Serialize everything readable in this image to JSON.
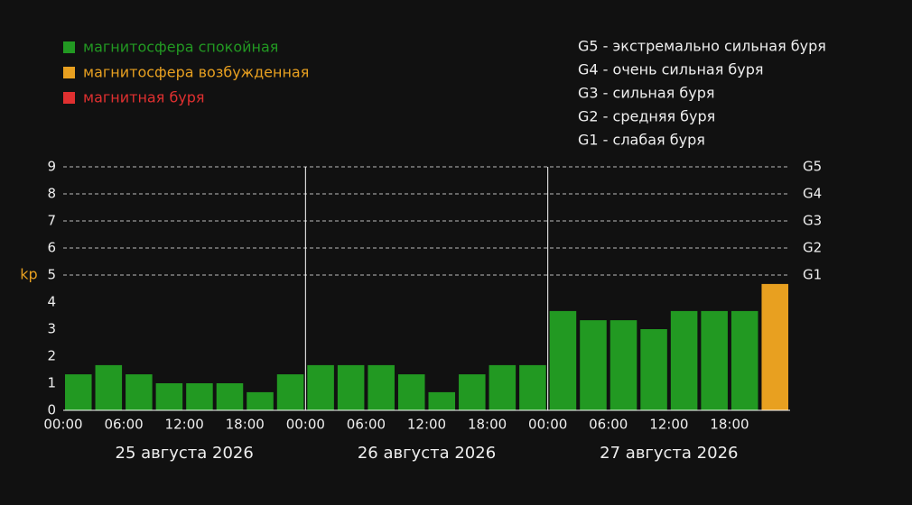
{
  "chart_data": {
    "type": "bar",
    "y_label": "kp",
    "legend": [
      {
        "name": "магнитосфера спокойная",
        "color": "#229922"
      },
      {
        "name": "магнитосфера возбужденная",
        "color": "#e8a020"
      },
      {
        "name": "магнитная буря",
        "color": "#e03030"
      }
    ],
    "storm_levels": [
      "G5 - экстремально сильная буря",
      "G4 - очень сильная буря",
      "G3 - сильная буря",
      "G2 - средняя буря",
      "G1 - слабая буря"
    ],
    "x": [
      0,
      3,
      6,
      9,
      12,
      15,
      18,
      21,
      24,
      27,
      30,
      33,
      36,
      39,
      42,
      45,
      48,
      51,
      54,
      57,
      60,
      63,
      66,
      69
    ],
    "bar_width": 3,
    "values": [
      1.33,
      1.67,
      1.33,
      1,
      1,
      1,
      0.67,
      1.33,
      1.67,
      1.67,
      1.67,
      1.33,
      0.67,
      1.33,
      1.67,
      1.67,
      3.67,
      3.33,
      3.33,
      3,
      3.67,
      3.67,
      3.67,
      4.67
    ],
    "colors": [
      "#229922",
      "#229922",
      "#229922",
      "#229922",
      "#229922",
      "#229922",
      "#229922",
      "#229922",
      "#229922",
      "#229922",
      "#229922",
      "#229922",
      "#229922",
      "#229922",
      "#229922",
      "#229922",
      "#229922",
      "#229922",
      "#229922",
      "#229922",
      "#229922",
      "#229922",
      "#229922",
      "#e8a020"
    ],
    "xlim": [
      0,
      72
    ],
    "xticks": [
      {
        "value": 0,
        "label": "00:00"
      },
      {
        "value": 6,
        "label": "06:00"
      },
      {
        "value": 12,
        "label": "12:00"
      },
      {
        "value": 18,
        "label": "18:00"
      },
      {
        "value": 24,
        "label": "00:00"
      },
      {
        "value": 30,
        "label": "06:00"
      },
      {
        "value": 36,
        "label": "12:00"
      },
      {
        "value": 42,
        "label": "18:00"
      },
      {
        "value": 48,
        "label": "00:00"
      },
      {
        "value": 54,
        "label": "06:00"
      },
      {
        "value": 60,
        "label": "12:00"
      },
      {
        "value": 66,
        "label": "18:00"
      }
    ],
    "days": [
      "25 августа 2026",
      "26 августа 2026",
      "27 августа 2026"
    ],
    "ylim": [
      0,
      9
    ],
    "yticks": [
      0,
      1,
      2,
      3,
      4,
      5,
      6,
      7,
      8,
      9
    ],
    "y2lim": [
      0,
      9
    ],
    "y2ticks": [
      {
        "value": 9,
        "label": "G5"
      },
      {
        "value": 8,
        "label": "G4"
      },
      {
        "value": 7,
        "label": "G3"
      },
      {
        "value": 6,
        "label": "G2"
      },
      {
        "value": 5,
        "label": "G1"
      }
    ],
    "grid": true
  }
}
